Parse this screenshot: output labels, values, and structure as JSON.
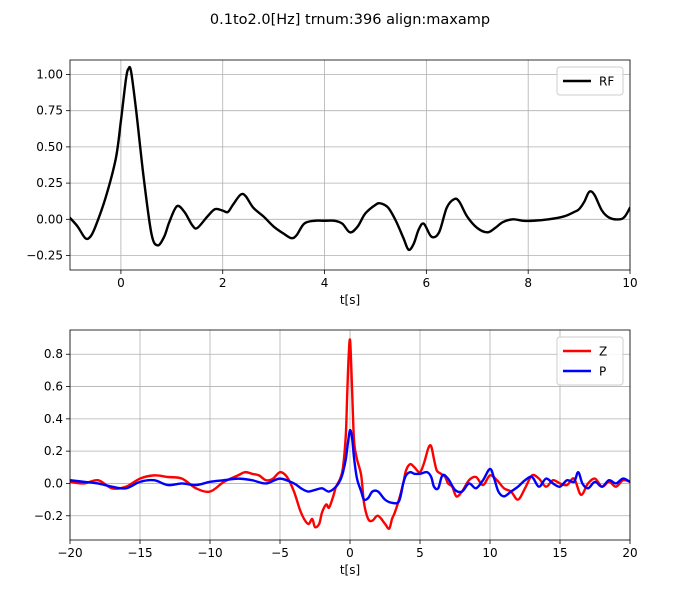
{
  "figure": {
    "title": "0.1to2.0[Hz] trnum:396 align:maxamp"
  },
  "chart_data": [
    {
      "type": "line",
      "xlabel": "t[s]",
      "ylabel": "",
      "xlim": [
        -1,
        10
      ],
      "ylim": [
        -0.35,
        1.1
      ],
      "xticks": [
        0,
        2,
        4,
        6,
        8,
        10
      ],
      "xtick_labels": [
        "0",
        "2",
        "4",
        "6",
        "8",
        "10"
      ],
      "yticks": [
        -0.25,
        0,
        0.25,
        0.5,
        0.75,
        1.0
      ],
      "ytick_labels": [
        "−0.25",
        "0.00",
        "0.25",
        "0.50",
        "0.75",
        "1.00"
      ],
      "grid": true,
      "legend_position": "top-right",
      "series": [
        {
          "name": "RF",
          "color": "#000000",
          "x": [
            -1.0,
            -0.85,
            -0.7,
            -0.6,
            -0.5,
            -0.3,
            -0.1,
            0.0,
            0.1,
            0.15,
            0.2,
            0.3,
            0.45,
            0.6,
            0.72,
            0.85,
            0.95,
            1.1,
            1.25,
            1.4,
            1.5,
            1.7,
            1.85,
            2.0,
            2.1,
            2.2,
            2.35,
            2.45,
            2.6,
            2.8,
            3.0,
            3.2,
            3.35,
            3.45,
            3.6,
            3.8,
            4.0,
            4.2,
            4.35,
            4.5,
            4.65,
            4.8,
            5.0,
            5.1,
            5.25,
            5.4,
            5.55,
            5.65,
            5.75,
            5.85,
            5.95,
            6.1,
            6.25,
            6.4,
            6.55,
            6.65,
            6.8,
            7.0,
            7.2,
            7.35,
            7.5,
            7.7,
            7.9,
            8.1,
            8.4,
            8.7,
            8.9,
            9.0,
            9.1,
            9.2,
            9.3,
            9.45,
            9.6,
            9.8,
            9.9,
            10.0
          ],
          "y": [
            0.01,
            -0.05,
            -0.13,
            -0.12,
            -0.05,
            0.15,
            0.42,
            0.68,
            0.97,
            1.04,
            1.02,
            0.75,
            0.28,
            -0.1,
            -0.18,
            -0.12,
            -0.02,
            0.09,
            0.05,
            -0.04,
            -0.06,
            0.02,
            0.07,
            0.06,
            0.05,
            0.1,
            0.17,
            0.16,
            0.08,
            0.02,
            -0.05,
            -0.1,
            -0.13,
            -0.11,
            -0.03,
            -0.01,
            -0.01,
            -0.01,
            -0.03,
            -0.09,
            -0.05,
            0.04,
            0.1,
            0.11,
            0.08,
            -0.01,
            -0.13,
            -0.21,
            -0.17,
            -0.07,
            -0.03,
            -0.12,
            -0.09,
            0.08,
            0.14,
            0.12,
            0.02,
            -0.06,
            -0.09,
            -0.06,
            -0.02,
            0.0,
            -0.01,
            -0.01,
            0.0,
            0.02,
            0.05,
            0.07,
            0.12,
            0.19,
            0.17,
            0.06,
            0.01,
            0.0,
            0.02,
            0.08
          ]
        }
      ]
    },
    {
      "type": "line",
      "xlabel": "t[s]",
      "ylabel": "",
      "xlim": [
        -20,
        20
      ],
      "ylim": [
        -0.35,
        0.95
      ],
      "xticks": [
        -20,
        -15,
        -10,
        -5,
        0,
        5,
        10,
        15,
        20
      ],
      "xtick_labels": [
        "−20",
        "−15",
        "−10",
        "−5",
        "0",
        "5",
        "10",
        "15",
        "20"
      ],
      "yticks": [
        -0.2,
        0.0,
        0.2,
        0.4,
        0.6,
        0.8
      ],
      "ytick_labels": [
        "−0.2",
        "0.0",
        "0.2",
        "0.4",
        "0.6",
        "0.8"
      ],
      "grid": true,
      "legend_position": "top-right",
      "series": [
        {
          "name": "Z",
          "color": "#ff0000",
          "x": [
            -20,
            -19,
            -18,
            -17,
            -16,
            -15,
            -14,
            -13,
            -12,
            -11,
            -10,
            -9,
            -8,
            -7.5,
            -7,
            -6.5,
            -6,
            -5.5,
            -5,
            -4.5,
            -4,
            -3.5,
            -3,
            -2.7,
            -2.5,
            -2.2,
            -2,
            -1.7,
            -1.5,
            -1.2,
            -1,
            -0.7,
            -0.5,
            -0.3,
            -0.2,
            -0.1,
            0,
            0.1,
            0.2,
            0.3,
            0.5,
            0.8,
            1,
            1.3,
            1.6,
            2,
            2.5,
            2.8,
            3,
            3.2,
            3.5,
            3.8,
            4,
            4.3,
            4.6,
            5,
            5.3,
            5.6,
            5.8,
            6,
            6.2,
            6.5,
            6.8,
            7,
            7.3,
            7.6,
            8,
            8.5,
            9,
            9.5,
            10,
            10.5,
            11,
            11.5,
            12,
            12.5,
            13,
            13.5,
            14,
            14.5,
            15,
            15.5,
            16,
            16.5,
            17,
            17.5,
            18,
            18.5,
            19,
            19.5,
            20
          ],
          "y": [
            0.01,
            0.0,
            0.02,
            -0.03,
            -0.02,
            0.03,
            0.05,
            0.04,
            0.03,
            -0.03,
            -0.05,
            0.01,
            0.05,
            0.07,
            0.06,
            0.05,
            0.02,
            0.03,
            0.07,
            0.04,
            -0.05,
            -0.18,
            -0.25,
            -0.22,
            -0.27,
            -0.25,
            -0.18,
            -0.13,
            -0.15,
            -0.08,
            -0.02,
            0.03,
            0.1,
            0.3,
            0.55,
            0.78,
            0.89,
            0.7,
            0.45,
            0.25,
            0.15,
            0.05,
            -0.12,
            -0.22,
            -0.23,
            -0.2,
            -0.25,
            -0.28,
            -0.22,
            -0.18,
            -0.1,
            0.0,
            0.08,
            0.12,
            0.1,
            0.07,
            0.13,
            0.22,
            0.23,
            0.15,
            0.08,
            0.06,
            0.04,
            0.0,
            -0.02,
            -0.08,
            -0.05,
            0.02,
            0.04,
            -0.01,
            0.05,
            0.02,
            -0.03,
            -0.05,
            -0.1,
            -0.03,
            0.05,
            0.03,
            -0.02,
            0.02,
            0.0,
            -0.01,
            0.03,
            -0.07,
            0.0,
            0.03,
            -0.02,
            0.01,
            -0.02,
            0.02,
            0.01
          ]
        },
        {
          "name": "P",
          "color": "#0000ff",
          "x": [
            -20,
            -19,
            -18,
            -17,
            -16,
            -15,
            -14,
            -13,
            -12,
            -11,
            -10,
            -9,
            -8,
            -7,
            -6,
            -5,
            -4,
            -3.5,
            -3,
            -2.5,
            -2,
            -1.5,
            -1,
            -0.7,
            -0.5,
            -0.3,
            -0.15,
            0,
            0.15,
            0.3,
            0.5,
            0.8,
            1,
            1.3,
            1.6,
            2,
            2.5,
            3,
            3.5,
            3.8,
            4,
            4.3,
            4.6,
            5,
            5.5,
            5.8,
            6,
            6.3,
            6.6,
            7,
            7.5,
            8,
            8.5,
            9,
            9.5,
            10,
            10.3,
            10.6,
            11,
            11.5,
            12,
            12.5,
            13,
            13.5,
            14,
            14.5,
            15,
            15.5,
            16,
            16.3,
            16.6,
            17,
            17.5,
            18,
            18.5,
            19,
            19.5,
            20
          ],
          "y": [
            0.02,
            0.01,
            0.0,
            -0.02,
            -0.03,
            0.01,
            0.02,
            -0.01,
            0.0,
            -0.01,
            0.01,
            0.02,
            0.03,
            0.02,
            0.0,
            0.03,
            0.0,
            -0.03,
            -0.05,
            -0.04,
            -0.03,
            -0.05,
            -0.02,
            0.02,
            0.07,
            0.15,
            0.25,
            0.33,
            0.28,
            0.15,
            0.03,
            -0.05,
            -0.1,
            -0.09,
            -0.05,
            -0.05,
            -0.1,
            -0.12,
            -0.11,
            0.0,
            0.05,
            0.07,
            0.06,
            0.06,
            0.07,
            0.04,
            -0.02,
            -0.03,
            0.05,
            0.03,
            -0.04,
            -0.05,
            0.0,
            -0.03,
            0.02,
            0.09,
            0.03,
            -0.05,
            -0.08,
            -0.05,
            -0.02,
            0.02,
            0.04,
            -0.02,
            0.03,
            0.0,
            -0.02,
            0.02,
            0.01,
            0.07,
            0.0,
            -0.03,
            0.01,
            -0.02,
            0.02,
            0.0,
            0.03,
            0.01
          ]
        }
      ]
    }
  ]
}
